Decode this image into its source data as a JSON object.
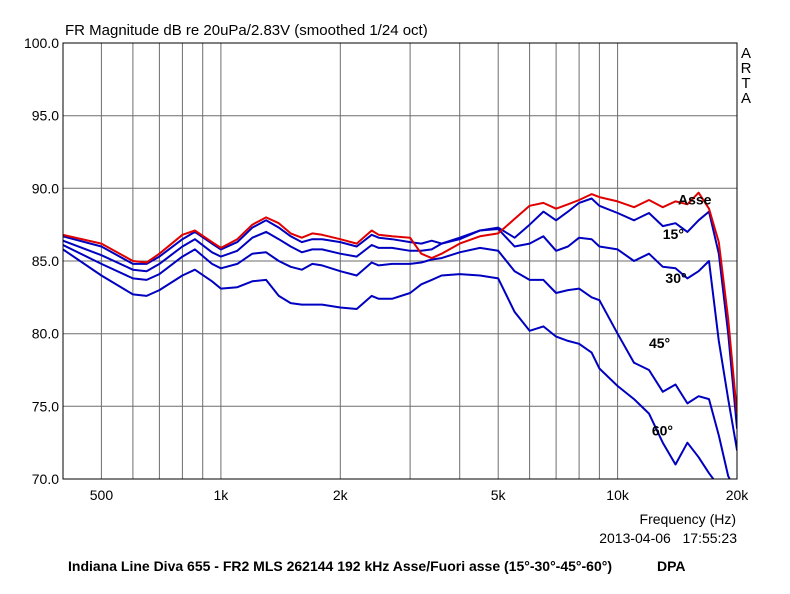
{
  "chart_data": {
    "type": "line",
    "title": "FR Magnitude dB re 20uPa/2.83V (smoothed 1/24 oct)",
    "xlabel": "Frequency (Hz)",
    "ylabel": "",
    "x_scale": "log",
    "xlim": [
      400,
      20000
    ],
    "ylim": [
      70,
      100
    ],
    "grid": true,
    "x_ticks": [
      {
        "value": 500,
        "label": "500"
      },
      {
        "value": 1000,
        "label": "1k"
      },
      {
        "value": 2000,
        "label": "2k"
      },
      {
        "value": 5000,
        "label": "5k"
      },
      {
        "value": 10000,
        "label": "10k"
      },
      {
        "value": 20000,
        "label": "20k"
      }
    ],
    "x_grid": [
      400,
      500,
      600,
      700,
      800,
      900,
      1000,
      2000,
      3000,
      4000,
      5000,
      6000,
      7000,
      8000,
      9000,
      10000,
      20000
    ],
    "y_ticks": [
      {
        "value": 100,
        "label": "100.0"
      },
      {
        "value": 95,
        "label": "95.0"
      },
      {
        "value": 90,
        "label": "90.0"
      },
      {
        "value": 85,
        "label": "85.0"
      },
      {
        "value": 80,
        "label": "80.0"
      },
      {
        "value": 75,
        "label": "75.0"
      },
      {
        "value": 70,
        "label": "70.0"
      }
    ],
    "series": [
      {
        "name": "Asse",
        "color": "#e00000",
        "x": [
          400,
          500,
          600,
          650,
          700,
          800,
          860,
          950,
          1000,
          1100,
          1200,
          1300,
          1400,
          1500,
          1600,
          1700,
          1800,
          2000,
          2200,
          2400,
          2500,
          2700,
          3000,
          3200,
          3400,
          3600,
          4000,
          4500,
          5000,
          5500,
          6000,
          6500,
          7000,
          7500,
          8000,
          8600,
          9000,
          10000,
          11000,
          12000,
          13000,
          14000,
          15000,
          16000,
          17000,
          18000,
          19000,
          20000
        ],
        "y": [
          86.8,
          86.2,
          85.0,
          84.9,
          85.5,
          86.8,
          87.1,
          86.3,
          85.9,
          86.5,
          87.5,
          88.0,
          87.6,
          86.9,
          86.6,
          86.9,
          86.8,
          86.5,
          86.2,
          87.1,
          86.8,
          86.7,
          86.6,
          85.5,
          85.2,
          85.5,
          86.2,
          86.7,
          86.9,
          87.9,
          88.8,
          89.0,
          88.6,
          88.9,
          89.2,
          89.6,
          89.4,
          89.1,
          88.7,
          89.2,
          88.7,
          89.1,
          88.9,
          89.7,
          88.6,
          86.3,
          81.0,
          74.5
        ]
      },
      {
        "name": "15°",
        "color": "#0000c0",
        "x": [
          400,
          500,
          600,
          650,
          700,
          800,
          860,
          950,
          1000,
          1100,
          1200,
          1300,
          1400,
          1500,
          1600,
          1700,
          1800,
          2000,
          2200,
          2400,
          2500,
          2700,
          3000,
          3200,
          3400,
          3600,
          4000,
          4500,
          5000,
          5500,
          6000,
          6500,
          7000,
          7500,
          8000,
          8600,
          9000,
          10000,
          11000,
          12000,
          13000,
          14000,
          15000,
          16000,
          17000,
          18000,
          19000,
          20000
        ],
        "y": [
          86.7,
          86.0,
          84.8,
          84.8,
          85.3,
          86.5,
          87.0,
          86.2,
          85.8,
          86.3,
          87.3,
          87.8,
          87.3,
          86.7,
          86.3,
          86.5,
          86.5,
          86.3,
          86.0,
          86.8,
          86.6,
          86.5,
          86.3,
          86.2,
          86.4,
          86.2,
          86.5,
          87.1,
          87.3,
          86.6,
          87.5,
          88.4,
          87.8,
          88.4,
          89.0,
          89.3,
          88.8,
          88.3,
          87.8,
          88.3,
          87.4,
          87.6,
          87.0,
          87.8,
          88.4,
          85.5,
          80.0,
          73.5
        ]
      },
      {
        "name": "30°",
        "color": "#0000c0",
        "x": [
          400,
          500,
          600,
          650,
          700,
          800,
          860,
          950,
          1000,
          1100,
          1200,
          1300,
          1400,
          1500,
          1600,
          1700,
          1800,
          2000,
          2200,
          2400,
          2500,
          2700,
          3000,
          3200,
          3400,
          3600,
          4000,
          4500,
          5000,
          5500,
          6000,
          6500,
          7000,
          7500,
          8000,
          8600,
          9000,
          10000,
          11000,
          12000,
          13000,
          14000,
          15000,
          16000,
          17000,
          18000,
          19000,
          20000
        ],
        "y": [
          86.4,
          85.4,
          84.4,
          84.3,
          84.8,
          86.0,
          86.5,
          85.6,
          85.3,
          85.7,
          86.6,
          87.0,
          86.5,
          86.0,
          85.6,
          85.8,
          85.8,
          85.5,
          85.3,
          86.1,
          85.9,
          85.9,
          85.7,
          85.7,
          85.8,
          86.2,
          86.6,
          87.1,
          87.2,
          86.0,
          86.2,
          86.7,
          85.7,
          86.0,
          86.6,
          86.5,
          86.0,
          85.8,
          85.0,
          85.5,
          84.6,
          84.5,
          83.8,
          84.3,
          85.0,
          79.5,
          75.5,
          72.0
        ]
      },
      {
        "name": "45°",
        "color": "#0000c0",
        "x": [
          400,
          500,
          600,
          650,
          700,
          800,
          860,
          950,
          1000,
          1100,
          1200,
          1300,
          1400,
          1500,
          1600,
          1700,
          1800,
          2000,
          2200,
          2400,
          2500,
          2700,
          3000,
          3200,
          3400,
          3600,
          4000,
          4500,
          5000,
          5500,
          6000,
          6500,
          7000,
          7500,
          8000,
          8600,
          9000,
          10000,
          11000,
          12000,
          13000,
          14000,
          15000,
          16000,
          17000,
          18000,
          19000,
          20000
        ],
        "y": [
          86.1,
          84.8,
          83.8,
          83.7,
          84.1,
          85.3,
          85.8,
          84.8,
          84.5,
          84.8,
          85.5,
          85.6,
          85.0,
          84.6,
          84.4,
          84.8,
          84.7,
          84.3,
          84.0,
          84.9,
          84.7,
          84.8,
          84.8,
          84.9,
          85.1,
          85.2,
          85.6,
          85.9,
          85.7,
          84.3,
          83.7,
          83.7,
          82.8,
          83.0,
          83.1,
          82.5,
          82.3,
          80.0,
          78.0,
          77.5,
          76.0,
          76.5,
          75.2,
          75.7,
          75.5,
          73.0,
          70.2,
          69.0
        ]
      },
      {
        "name": "60°",
        "color": "#0000c0",
        "x": [
          400,
          500,
          600,
          650,
          700,
          800,
          860,
          950,
          1000,
          1100,
          1200,
          1300,
          1400,
          1500,
          1600,
          1700,
          1800,
          2000,
          2200,
          2400,
          2500,
          2700,
          3000,
          3200,
          3400,
          3600,
          4000,
          4500,
          5000,
          5500,
          6000,
          6500,
          7000,
          7500,
          8000,
          8600,
          9000,
          10000,
          11000,
          12000,
          13000,
          14000,
          15000,
          16000,
          17000,
          18000,
          19000,
          20000
        ],
        "y": [
          85.8,
          84.0,
          82.7,
          82.6,
          83.0,
          84.0,
          84.4,
          83.6,
          83.1,
          83.2,
          83.6,
          83.7,
          82.6,
          82.1,
          82.0,
          82.0,
          82.0,
          81.8,
          81.7,
          82.6,
          82.4,
          82.4,
          82.8,
          83.4,
          83.7,
          84.0,
          84.1,
          84.0,
          83.8,
          81.5,
          80.2,
          80.5,
          79.8,
          79.5,
          79.3,
          78.7,
          77.6,
          76.4,
          75.5,
          74.5,
          72.5,
          71.0,
          72.5,
          71.5,
          70.4,
          69.5,
          69.0,
          68.5
        ]
      }
    ],
    "annotations": [
      {
        "text": "Asse",
        "x": 14200,
        "y": 88.9
      },
      {
        "text": "15°",
        "x": 13000,
        "y": 86.5
      },
      {
        "text": "30°",
        "x": 13200,
        "y": 83.5
      },
      {
        "text": "45°",
        "x": 12000,
        "y": 79.0
      },
      {
        "text": "60°",
        "x": 12200,
        "y": 73.0
      }
    ]
  },
  "side_text": [
    "A",
    "R",
    "T",
    "A"
  ],
  "timestamp": "2013-04-06   17:55:23",
  "footer_left": "Indiana Line Diva 655 - FR2 MLS 262144 192 kHz Asse/Fuori asse (15°-30°-45°-60°)",
  "footer_right": "DPA"
}
